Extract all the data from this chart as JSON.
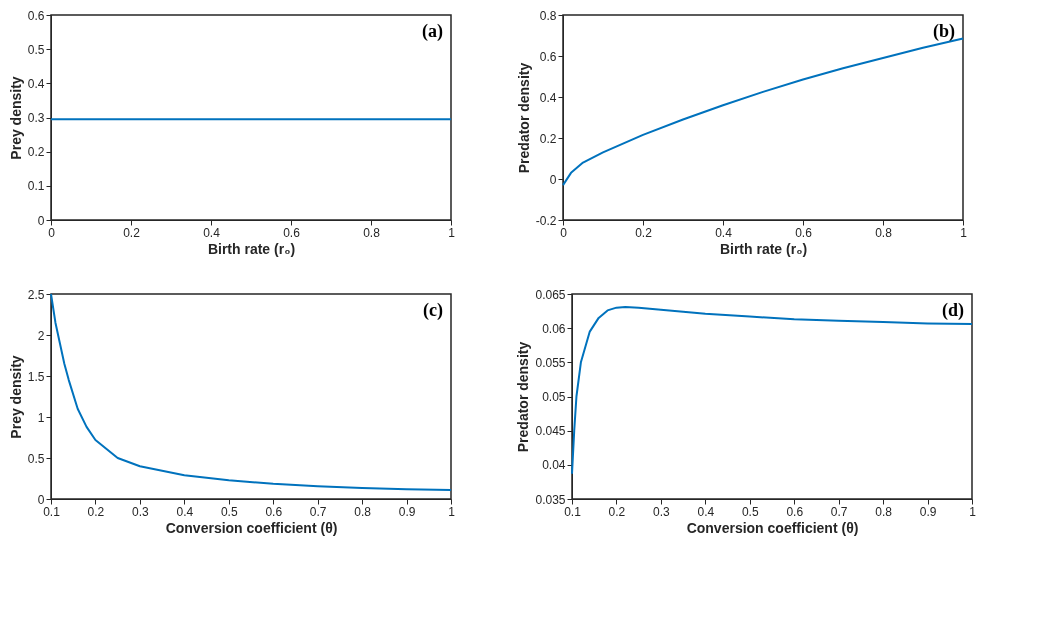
{
  "chart_data": [
    {
      "type": "line",
      "xlabel": "Birth rate (r₀)",
      "ylabel": "Prey density",
      "annotations": [
        "(a)"
      ],
      "x": [
        0,
        0.25,
        0.5,
        0.75,
        1
      ],
      "xlim": [
        0,
        1
      ],
      "ylim": [
        0,
        0.6
      ],
      "xticks": [
        0,
        0.2,
        0.4,
        0.6,
        0.8,
        1
      ],
      "yticks": [
        0,
        0.1,
        0.2,
        0.3,
        0.4,
        0.5,
        0.6
      ],
      "series": [
        {
          "color": "#0072bd",
          "values": [
            0.295,
            0.295,
            0.295,
            0.295,
            0.295
          ]
        }
      ]
    },
    {
      "type": "line",
      "xlabel": "Birth rate (r₀)",
      "ylabel": "Predator density",
      "annotations": [
        "(b)"
      ],
      "x": [
        0,
        0.02,
        0.05,
        0.1,
        0.2,
        0.3,
        0.4,
        0.5,
        0.6,
        0.7,
        0.8,
        0.9,
        1
      ],
      "xlim": [
        0,
        1
      ],
      "ylim": [
        -0.2,
        0.8
      ],
      "xticks": [
        0,
        0.2,
        0.4,
        0.6,
        0.8,
        1
      ],
      "yticks": [
        -0.2,
        0,
        0.2,
        0.4,
        0.6,
        0.8
      ],
      "series": [
        {
          "color": "#0072bd",
          "values": [
            -0.03,
            0.03,
            0.08,
            0.13,
            0.215,
            0.29,
            0.36,
            0.425,
            0.485,
            0.54,
            0.59,
            0.64,
            0.685
          ]
        }
      ]
    },
    {
      "type": "line",
      "xlabel": "Conversion coefficient (θ)",
      "ylabel": "Prey density",
      "annotations": [
        "(c)"
      ],
      "x": [
        0.1,
        0.11,
        0.12,
        0.13,
        0.14,
        0.16,
        0.18,
        0.2,
        0.25,
        0.3,
        0.4,
        0.5,
        0.6,
        0.7,
        0.8,
        0.9,
        1
      ],
      "xlim": [
        0.1,
        1
      ],
      "ylim": [
        0,
        2.5
      ],
      "xticks": [
        0.1,
        0.2,
        0.3,
        0.4,
        0.5,
        0.6,
        0.7,
        0.8,
        0.9,
        1
      ],
      "yticks": [
        0,
        0.5,
        1,
        1.5,
        2,
        2.5
      ],
      "series": [
        {
          "color": "#0072bd",
          "values": [
            2.5,
            2.15,
            1.9,
            1.65,
            1.45,
            1.1,
            0.88,
            0.72,
            0.5,
            0.4,
            0.29,
            0.23,
            0.185,
            0.155,
            0.135,
            0.12,
            0.11
          ]
        }
      ]
    },
    {
      "type": "line",
      "xlabel": "Conversion coefficient (θ)",
      "ylabel": "Predator density",
      "annotations": [
        "(d)"
      ],
      "x": [
        0.1,
        0.105,
        0.11,
        0.12,
        0.14,
        0.16,
        0.18,
        0.2,
        0.22,
        0.25,
        0.3,
        0.4,
        0.5,
        0.6,
        0.7,
        0.8,
        0.9,
        1
      ],
      "xlim": [
        0.1,
        1
      ],
      "ylim": [
        0.035,
        0.065
      ],
      "xticks": [
        0.1,
        0.2,
        0.3,
        0.4,
        0.5,
        0.6,
        0.7,
        0.8,
        0.9,
        1
      ],
      "yticks": [
        0.035,
        0.04,
        0.045,
        0.05,
        0.055,
        0.06,
        0.065
      ],
      "series": [
        {
          "color": "#0072bd",
          "values": [
            0.0387,
            0.045,
            0.05,
            0.055,
            0.0595,
            0.0615,
            0.0626,
            0.063,
            0.0631,
            0.063,
            0.0627,
            0.0621,
            0.0617,
            0.0613,
            0.0611,
            0.0609,
            0.0607,
            0.0606
          ]
        }
      ]
    }
  ]
}
